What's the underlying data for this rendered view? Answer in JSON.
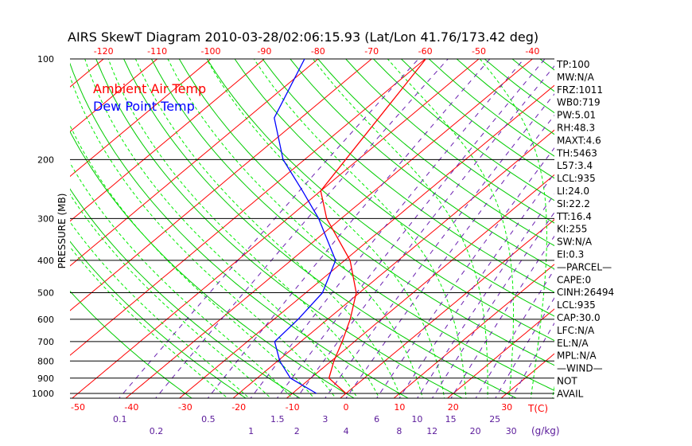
{
  "chart_data": {
    "type": "line",
    "title": "AIRS SkewT Diagram 2010-03-28/02:06:15.93 (Lat/Lon 41.76/173.42 deg)",
    "ylabel": "PRESSURE (MB)",
    "xlabel": "T(C)",
    "mixing_ratio_label": "(g/kg)",
    "y_scale": "log",
    "ylim": [
      1000,
      100
    ],
    "pressure_ticks": [
      100,
      200,
      300,
      400,
      500,
      600,
      700,
      800,
      900,
      1000
    ],
    "bottom_temp_ticks": [
      -50,
      -40,
      -30,
      -20,
      -10,
      0,
      10,
      20,
      30
    ],
    "top_temp_ticks": [
      -120,
      -110,
      -100,
      -90,
      -80,
      -70,
      -60,
      -50,
      -40
    ],
    "mixing_ratio_ticks": [
      "0.1",
      "0.2",
      "0.5",
      "1",
      "1.5",
      "2",
      "3",
      "4",
      "6",
      "8",
      "10",
      "12",
      "15",
      "20",
      "25",
      "30"
    ],
    "legend": [
      {
        "label": "Ambient Air Temp",
        "color": "#ff0000"
      },
      {
        "label": "Dew Point Temp",
        "color": "#0000ff"
      }
    ],
    "series": [
      {
        "name": "Ambient Air Temp",
        "color": "#ff0000",
        "pressure": [
          100,
          248,
          300,
          400,
          500,
          600,
          700,
          800,
          900,
          1000
        ],
        "temperature": [
          -59.9,
          -50.0,
          -42.7,
          -29.0,
          -20.6,
          -15.8,
          -12.3,
          -9.5,
          -6.6,
          0.0
        ]
      },
      {
        "name": "Dew Point Temp",
        "color": "#0000ff",
        "pressure": [
          100,
          150,
          200,
          248,
          300,
          400,
          500,
          600,
          700,
          800,
          900,
          1000
        ],
        "temperature": [
          -82.5,
          -75.0,
          -64.0,
          -53.4,
          -44.2,
          -31.7,
          -26.9,
          -25.5,
          -24.9,
          -19.6,
          -13.8,
          -5.5
        ]
      }
    ]
  },
  "indices": [
    "TP:100",
    "MW:N/A",
    "FRZ:1011",
    "WB0:719",
    "PW:5.01",
    "RH:48.3",
    "MAXT:4.6",
    "TH:5463",
    "L57:3.4",
    "LCL:935",
    "LI:24.0",
    "SI:22.2",
    "TT:16.4",
    "KI:255",
    "SW:N/A",
    "EI:0.3",
    "—PARCEL—",
    "CAPE:0",
    "CINH:26494",
    "LCL:935",
    "CAP:30.0",
    "LFC:N/A",
    "EL:N/A",
    "MPL:N/A",
    "—WIND—",
    "NOT",
    "AVAIL"
  ],
  "colors": {
    "isotherm": "#ff0000",
    "dry_adiabat": "#00cc00",
    "moist_adiabat": "#00ee00",
    "mixing_ratio": "#6a1fb0",
    "axis_label_temp": "#ff0000",
    "mixing_label": "#5a1a9a"
  }
}
